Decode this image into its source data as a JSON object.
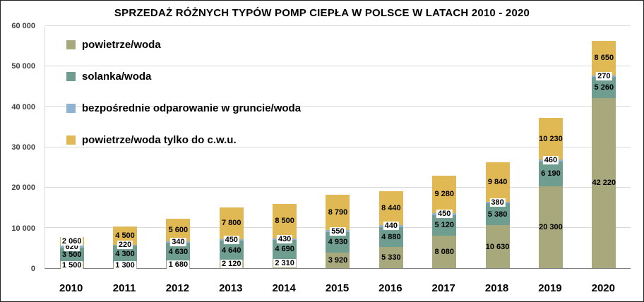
{
  "chart_data": {
    "type": "bar",
    "stacked": true,
    "title": "SPRZEDAŻ RÓŻNYCH TYPÓW POMP CIEPŁA W POLSCE W LATACH 2010 - 2020",
    "categories": [
      "2010",
      "2011",
      "2012",
      "2013",
      "2014",
      "2015",
      "2016",
      "2017",
      "2018",
      "2019",
      "2020"
    ],
    "series": [
      {
        "name": "powietrze/woda",
        "color": "#a7a87c",
        "values": [
          1500,
          1300,
          1680,
          2120,
          2310,
          3920,
          5330,
          8080,
          10630,
          20300,
          42220
        ]
      },
      {
        "name": "solanka/woda",
        "color": "#6f9d8f",
        "values": [
          3500,
          4300,
          4630,
          4640,
          4690,
          4930,
          4880,
          5120,
          5380,
          6190,
          5260
        ]
      },
      {
        "name": "bezpośrednie odparowanie w gruncie/woda",
        "color": "#8fb3d1",
        "values": [
          620,
          220,
          340,
          450,
          430,
          550,
          440,
          450,
          380,
          460,
          270
        ]
      },
      {
        "name": "powietrze/woda tylko do c.w.u.",
        "color": "#e1b954",
        "values": [
          2060,
          4500,
          5600,
          7800,
          8500,
          8790,
          8440,
          9280,
          9840,
          10230,
          8650
        ]
      }
    ],
    "ylim": [
      0,
      60000
    ],
    "yticks": [
      0,
      10000,
      20000,
      30000,
      40000,
      50000,
      60000
    ],
    "ytick_labels": [
      "0",
      "10 000",
      "20 000",
      "30 000",
      "40 000",
      "50 000",
      "60 000"
    ],
    "grid": true,
    "legend_position": "upper-left-inside",
    "data_labels": true,
    "xlabel": "",
    "ylabel": ""
  }
}
